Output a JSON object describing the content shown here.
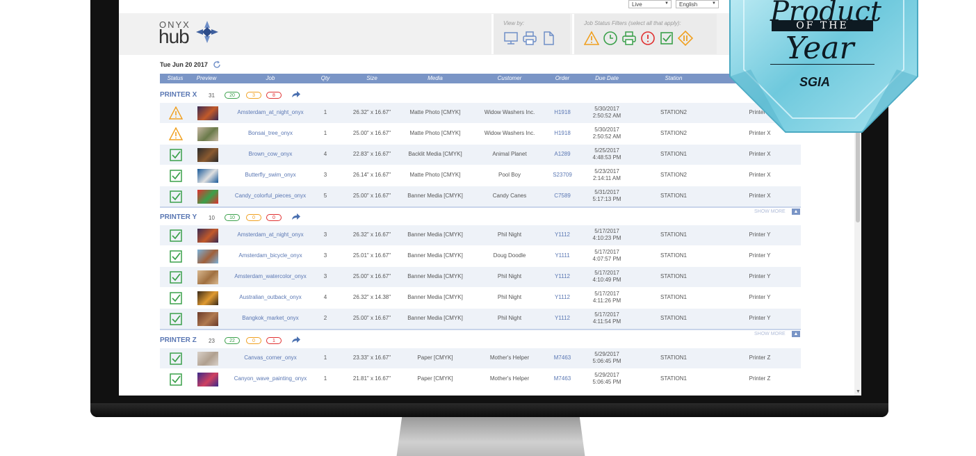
{
  "topbar": {
    "mode_select": "Live",
    "language_select": "English"
  },
  "header": {
    "logo_onyx": "ONYX",
    "logo_hub": "hub",
    "view_by_label": "View by:",
    "job_status_label": "Job Status Filters (select all that apply):"
  },
  "date_label": "Tue Jun 20 2017",
  "columns": [
    "Status",
    "Preview",
    "Job",
    "Qty",
    "Size",
    "Media",
    "Customer",
    "Order",
    "Due Date",
    "Station"
  ],
  "groups": [
    {
      "name": "PRINTER X",
      "count": "31",
      "green": "20",
      "orange": "3",
      "red": "8",
      "rows": [
        {
          "status": "warning",
          "job": "Amsterdam_at_night_onyx",
          "qty": "1",
          "size": "26.32\" x 16.67\"",
          "media": "Matte Photo [CMYK]",
          "customer": "Widow Washers Inc.",
          "order": "H1918",
          "due_date": "5/30/2017",
          "due_time": "2:50:52 AM",
          "station": "STATION2",
          "printer": "Printer X"
        },
        {
          "status": "warning",
          "job": "Bonsai_tree_onyx",
          "qty": "1",
          "size": "25.00\" x 16.67\"",
          "media": "Matte Photo [CMYK]",
          "customer": "Widow Washers Inc.",
          "order": "H1918",
          "due_date": "5/30/2017",
          "due_time": "2:50:52 AM",
          "station": "STATION2",
          "printer": "Printer X"
        },
        {
          "status": "check",
          "job": "Brown_cow_onyx",
          "qty": "4",
          "size": "22.83\" x 16.67\"",
          "media": "Backlit Media [CMYK]",
          "customer": "Animal Planet",
          "order": "A1289",
          "due_date": "5/25/2017",
          "due_time": "4:48:53 PM",
          "station": "STATION1",
          "printer": "Printer X"
        },
        {
          "status": "check",
          "job": "Butterfly_swim_onyx",
          "qty": "3",
          "size": "26.14\" x 16.67\"",
          "media": "Matte Photo [CMYK]",
          "customer": "Pool Boy",
          "order": "S23709",
          "due_date": "5/23/2017",
          "due_time": "2:14:11 AM",
          "station": "STATION2",
          "printer": "Printer X"
        },
        {
          "status": "check",
          "job": "Candy_colorful_pieces_onyx",
          "qty": "5",
          "size": "25.00\" x 16.67\"",
          "media": "Banner Media [CMYK]",
          "customer": "Candy Canes",
          "order": "C7589",
          "due_date": "5/31/2017",
          "due_time": "5:17:13 PM",
          "station": "STATION1",
          "printer": "Printer X"
        }
      ]
    },
    {
      "name": "PRINTER Y",
      "count": "10",
      "green": "10",
      "orange": "0",
      "red": "0",
      "rows": [
        {
          "status": "check",
          "job": "Amsterdam_at_night_onyx",
          "qty": "3",
          "size": "26.32\" x 16.67\"",
          "media": "Banner Media [CMYK]",
          "customer": "Phil Night",
          "order": "Y1112",
          "due_date": "5/17/2017",
          "due_time": "4:10:23 PM",
          "station": "STATION1",
          "printer": "Printer Y"
        },
        {
          "status": "check",
          "job": "Amsterdam_bicycle_onyx",
          "qty": "3",
          "size": "25.01\" x 16.67\"",
          "media": "Banner Media [CMYK]",
          "customer": "Doug Doodle",
          "order": "Y1111",
          "due_date": "5/17/2017",
          "due_time": "4:07:57 PM",
          "station": "STATION1",
          "printer": "Printer Y"
        },
        {
          "status": "check",
          "job": "Amsterdam_watercolor_onyx",
          "qty": "3",
          "size": "25.00\" x 16.67\"",
          "media": "Banner Media [CMYK]",
          "customer": "Phil Night",
          "order": "Y1112",
          "due_date": "5/17/2017",
          "due_time": "4:10:49 PM",
          "station": "STATION1",
          "printer": "Printer Y"
        },
        {
          "status": "check",
          "job": "Australian_outback_onyx",
          "qty": "4",
          "size": "26.32\" x 14.38\"",
          "media": "Banner Media [CMYK]",
          "customer": "Phil Night",
          "order": "Y1112",
          "due_date": "5/17/2017",
          "due_time": "4:11:26 PM",
          "station": "STATION1",
          "printer": "Printer Y"
        },
        {
          "status": "check",
          "job": "Bangkok_market_onyx",
          "qty": "2",
          "size": "25.00\" x 16.67\"",
          "media": "Banner Media [CMYK]",
          "customer": "Phil Night",
          "order": "Y1112",
          "due_date": "5/17/2017",
          "due_time": "4:11:54 PM",
          "station": "STATION1",
          "printer": "Printer Y"
        }
      ]
    },
    {
      "name": "PRINTER Z",
      "count": "23",
      "green": "22",
      "orange": "0",
      "red": "1",
      "rows": [
        {
          "status": "check",
          "job": "Canvas_corner_onyx",
          "qty": "1",
          "size": "23.33\" x 16.67\"",
          "media": "Paper [CMYK]",
          "customer": "Mother's Helper",
          "order": "M7463",
          "due_date": "5/29/2017",
          "due_time": "5:06:45 PM",
          "station": "STATION1",
          "printer": "Printer Z"
        },
        {
          "status": "check",
          "job": "Canyon_wave_painting_onyx",
          "qty": "1",
          "size": "21.81\" x 16.67\"",
          "media": "Paper [CMYK]",
          "customer": "Mother's Helper",
          "order": "M7463",
          "due_date": "5/29/2017",
          "due_time": "5:06:45 PM",
          "station": "STATION1",
          "printer": "Printer Z"
        }
      ]
    }
  ],
  "show_more_label": "SHOW MORE",
  "badge": {
    "line1": "Product",
    "band": "OF THE",
    "line2": "Year",
    "org": "SGIA"
  },
  "colors": {
    "header_blue": "#7a95c6",
    "group_blue": "#5a77b3",
    "warning_orange": "#f0a020",
    "ok_green": "#3aa04a",
    "error_red": "#e03030",
    "badge_cyan": "#7fd0e0"
  }
}
